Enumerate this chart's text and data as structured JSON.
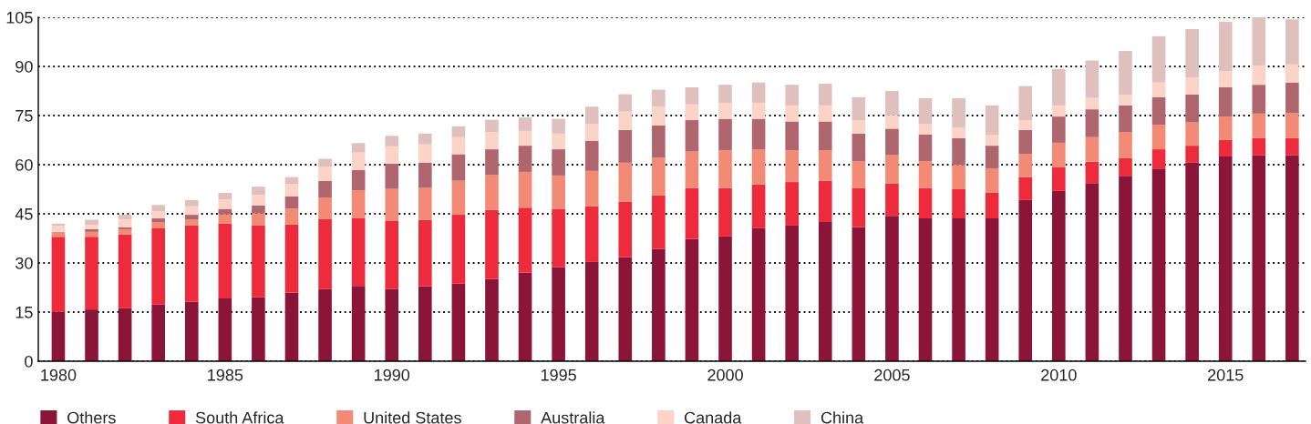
{
  "chart_data": {
    "type": "bar",
    "stacked": true,
    "categories": [
      "1980",
      null,
      null,
      null,
      null,
      "1985",
      null,
      null,
      null,
      null,
      "1990",
      null,
      null,
      null,
      null,
      "1995",
      null,
      null,
      null,
      null,
      "2000",
      null,
      null,
      null,
      null,
      "2005",
      null,
      null,
      null,
      null,
      "2010",
      null,
      null,
      null,
      null,
      "2015",
      null,
      null
    ],
    "series": [
      {
        "name": "Others",
        "color": "#8b1538",
        "values": [
          15.1,
          15.8,
          16.2,
          17.3,
          18.1,
          19.2,
          19.5,
          20.9,
          22.0,
          23.0,
          22.1,
          22.9,
          23.7,
          25.1,
          27.0,
          28.7,
          30.3,
          31.8,
          34.3,
          37.3,
          38.1,
          40.6,
          41.4,
          42.5,
          41.0,
          44.4,
          43.6,
          43.6,
          43.6,
          49.2,
          52.0,
          54.4,
          56.6,
          58.8,
          60.6,
          62.5,
          62.9,
          62.9
        ]
      },
      {
        "name": "South Africa",
        "color": "#ee2b3c",
        "values": [
          22.9,
          22.2,
          22.5,
          23.3,
          23.3,
          22.8,
          21.9,
          20.8,
          21.5,
          20.6,
          20.8,
          20.2,
          21.0,
          21.1,
          19.9,
          17.8,
          17.0,
          16.9,
          16.3,
          15.6,
          14.8,
          13.4,
          13.3,
          12.6,
          11.9,
          9.9,
          9.3,
          8.9,
          7.8,
          7.0,
          7.3,
          6.5,
          5.4,
          5.9,
          5.2,
          5.1,
          5.2,
          5.2
        ]
      },
      {
        "name": "United States",
        "color": "#f28a75",
        "values": [
          1.3,
          1.5,
          1.6,
          1.9,
          1.9,
          2.8,
          3.7,
          4.9,
          6.5,
          8.6,
          9.7,
          9.8,
          10.4,
          10.7,
          10.9,
          10.2,
          10.8,
          11.9,
          11.5,
          11.1,
          11.5,
          10.7,
          9.7,
          9.3,
          8.2,
          8.6,
          8.2,
          7.4,
          7.5,
          7.1,
          7.4,
          7.5,
          8.0,
          7.5,
          7.1,
          7.1,
          7.5,
          7.7
        ]
      },
      {
        "name": "Australia",
        "color": "#b0666e",
        "values": [
          0.2,
          0.8,
          0.6,
          1.1,
          1.4,
          1.7,
          2.5,
          3.7,
          5.0,
          6.2,
          7.7,
          7.7,
          8.1,
          7.8,
          8.0,
          8.0,
          9.2,
          10.0,
          9.9,
          9.6,
          9.6,
          9.3,
          8.8,
          8.8,
          8.4,
          8.1,
          8.1,
          8.2,
          6.9,
          7.3,
          8.0,
          8.5,
          8.1,
          8.4,
          8.5,
          9.0,
          8.8,
          9.3
        ]
      },
      {
        "name": "Canada",
        "color": "#fcd3c7",
        "values": [
          1.9,
          1.3,
          2.4,
          2.2,
          2.6,
          2.9,
          3.2,
          3.8,
          4.3,
          5.3,
          5.3,
          5.6,
          5.2,
          5.3,
          4.5,
          4.8,
          5.2,
          5.6,
          5.8,
          4.8,
          4.9,
          4.9,
          4.9,
          4.9,
          4.1,
          4.1,
          3.3,
          3.3,
          3.2,
          3.0,
          3.4,
          3.5,
          3.3,
          4.5,
          5.3,
          4.8,
          5.9,
          5.5
        ]
      },
      {
        "name": "China",
        "color": "#dfc0bf",
        "values": [
          0.6,
          1.6,
          1.5,
          1.9,
          1.9,
          2.0,
          2.5,
          2.1,
          2.5,
          2.9,
          3.2,
          3.3,
          3.3,
          3.7,
          4.1,
          4.5,
          5.2,
          5.3,
          5.1,
          5.2,
          5.5,
          6.2,
          6.3,
          6.6,
          7.0,
          7.4,
          7.8,
          8.9,
          9.1,
          10.4,
          11.1,
          11.4,
          13.3,
          14.1,
          14.7,
          15.1,
          14.7,
          13.8
        ]
      }
    ],
    "ylim": [
      0,
      105
    ],
    "yticks": [
      0,
      15,
      30,
      45,
      60,
      75,
      90,
      105
    ],
    "grid": "y",
    "legend": "bottom"
  }
}
